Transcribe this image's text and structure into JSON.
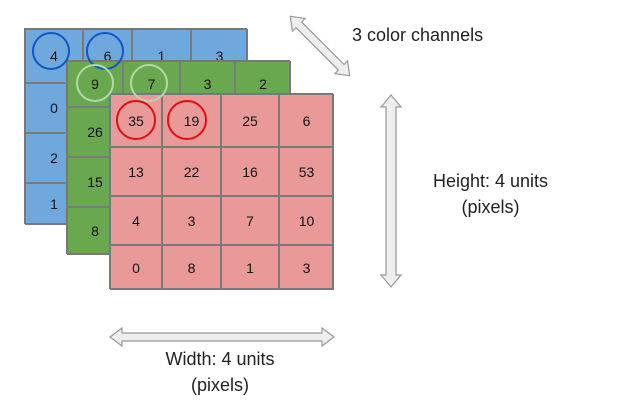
{
  "colors": {
    "blue_fill": "#6fa8dc",
    "green_fill": "#6aa84f",
    "red_fill": "#ea9999",
    "blue_circle": "#1155cc",
    "green_circle": "#b6d7a8",
    "red_circle": "#e01010",
    "arrow_fill": "#eeeeee",
    "arrow_stroke": "#999999"
  },
  "channels": {
    "blue": {
      "rows": [
        [
          "4",
          "6",
          "1",
          "3"
        ],
        [
          "0",
          "",
          "",
          ""
        ],
        [
          "2",
          "",
          "",
          ""
        ],
        [
          "1",
          "",
          "",
          ""
        ]
      ],
      "circled": [
        [
          0,
          0
        ],
        [
          0,
          1
        ]
      ]
    },
    "green": {
      "rows": [
        [
          "9",
          "7",
          "3",
          "2"
        ],
        [
          "26",
          "",
          "",
          ""
        ],
        [
          "15",
          "",
          "",
          ""
        ],
        [
          "8",
          "",
          "",
          ""
        ]
      ],
      "circled": [
        [
          0,
          0
        ],
        [
          0,
          1
        ]
      ]
    },
    "red": {
      "rows": [
        [
          "35",
          "19",
          "25",
          "6"
        ],
        [
          "13",
          "22",
          "16",
          "53"
        ],
        [
          "4",
          "3",
          "7",
          "10"
        ],
        [
          "0",
          "8",
          "1",
          "3"
        ]
      ],
      "circled": [
        [
          0,
          0
        ],
        [
          0,
          1
        ]
      ]
    }
  },
  "labels": {
    "channels": "3 color channels",
    "height_line1": "Height: 4 units",
    "height_line2": "(pixels)",
    "width_line1": "Width: 4 units",
    "width_line2": "(pixels)"
  }
}
